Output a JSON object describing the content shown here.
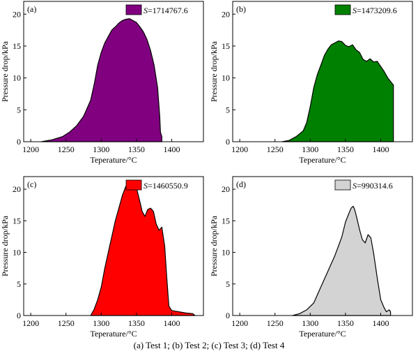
{
  "figure": {
    "caption": "(a) Test 1; (b) Test 2; (c) Test 3; (d) Test 4"
  },
  "chart_data": [
    {
      "type": "area",
      "panel_label": "(a)",
      "xlabel": "Teperature/°C",
      "ylabel": "Pressure drop/kPa",
      "xlim": [
        1190,
        1445
      ],
      "ylim": [
        0,
        22
      ],
      "xticks": [
        1200,
        1250,
        1300,
        1350,
        1400
      ],
      "yticks": [
        0,
        5,
        10,
        15,
        20
      ],
      "legend": {
        "position": "top-right",
        "symbol": "S",
        "value": "=1714767.6"
      },
      "color": "#800080",
      "x": [
        1215,
        1230,
        1245,
        1255,
        1265,
        1275,
        1285,
        1290,
        1295,
        1300,
        1305,
        1310,
        1315,
        1320,
        1325,
        1330,
        1335,
        1340,
        1345,
        1350,
        1355,
        1360,
        1365,
        1370,
        1375,
        1380,
        1383,
        1384,
        1386,
        1386
      ],
      "y": [
        0,
        0.3,
        0.8,
        1.5,
        2.5,
        4.0,
        6.5,
        9.0,
        12.0,
        14.0,
        15.5,
        16.5,
        17.5,
        18.0,
        18.6,
        19.0,
        19.2,
        19.3,
        19.0,
        18.7,
        18.0,
        17.2,
        16.0,
        14.3,
        12.0,
        8.5,
        4.0,
        1.5,
        0.8,
        0
      ]
    },
    {
      "type": "area",
      "panel_label": "(b)",
      "xlabel": "Teperature/°C",
      "ylabel": "Pressure drop/kPa",
      "xlim": [
        1190,
        1445
      ],
      "ylim": [
        0,
        22
      ],
      "xticks": [
        1200,
        1250,
        1300,
        1350,
        1400
      ],
      "yticks": [
        0,
        5,
        10,
        15,
        20
      ],
      "legend": {
        "position": "top-right",
        "symbol": "S",
        "value": "=1473209.6"
      },
      "color": "#008000",
      "x": [
        1260,
        1270,
        1280,
        1290,
        1295,
        1300,
        1305,
        1310,
        1315,
        1320,
        1325,
        1330,
        1335,
        1340,
        1345,
        1350,
        1355,
        1360,
        1365,
        1370,
        1375,
        1380,
        1385,
        1390,
        1395,
        1400,
        1405,
        1410,
        1415,
        1418,
        1418
      ],
      "y": [
        0,
        0.2,
        0.8,
        1.7,
        3.0,
        5.5,
        8.5,
        10.5,
        12.0,
        13.5,
        14.5,
        15.2,
        15.5,
        15.8,
        15.7,
        15.1,
        14.9,
        15.2,
        14.4,
        14.0,
        12.9,
        12.6,
        13.0,
        12.5,
        12.6,
        11.8,
        11.0,
        10.0,
        9.3,
        8.9,
        0
      ]
    },
    {
      "type": "area",
      "panel_label": "(c)",
      "xlabel": "Teperature/°C",
      "ylabel": "Pressure drop/kPa",
      "xlim": [
        1190,
        1445
      ],
      "ylim": [
        0,
        22
      ],
      "xticks": [
        1200,
        1250,
        1300,
        1350,
        1400
      ],
      "yticks": [
        0,
        5,
        10,
        15,
        20
      ],
      "legend": {
        "position": "top-right",
        "symbol": "S",
        "value": "=1460550.9"
      },
      "color": "#ff0000",
      "x": [
        1285,
        1290,
        1295,
        1300,
        1305,
        1310,
        1315,
        1320,
        1325,
        1330,
        1335,
        1338,
        1342,
        1346,
        1350,
        1355,
        1358,
        1362,
        1366,
        1370,
        1374,
        1378,
        1382,
        1386,
        1390,
        1393,
        1396,
        1400,
        1410,
        1420,
        1430,
        1433
      ],
      "y": [
        0,
        1.0,
        2.5,
        4.5,
        7.5,
        10.0,
        12.5,
        15.0,
        17.0,
        19.0,
        20.5,
        20.8,
        20.6,
        21.0,
        20.2,
        18.0,
        16.5,
        15.7,
        16.8,
        17.0,
        16.5,
        14.5,
        13.5,
        14.0,
        11.0,
        6.0,
        1.5,
        0.8,
        0.6,
        0.4,
        0.3,
        0
      ]
    },
    {
      "type": "area",
      "panel_label": "(d)",
      "xlabel": "Teperature/°C",
      "ylabel": "Pressure drop/kPa",
      "xlim": [
        1190,
        1445
      ],
      "ylim": [
        0,
        22
      ],
      "xticks": [
        1200,
        1250,
        1300,
        1350,
        1400
      ],
      "yticks": [
        0,
        5,
        10,
        15,
        20
      ],
      "legend": {
        "position": "top-right",
        "symbol": "S",
        "value": "=990314.6"
      },
      "color": "#d3d3d3",
      "x": [
        1275,
        1285,
        1295,
        1305,
        1315,
        1325,
        1335,
        1340,
        1345,
        1350,
        1355,
        1358,
        1361,
        1363,
        1366,
        1370,
        1374,
        1378,
        1382,
        1386,
        1390,
        1395,
        1400,
        1405,
        1408,
        1412,
        1414,
        1414
      ],
      "y": [
        0,
        0.3,
        0.9,
        2.0,
        4.5,
        7.0,
        9.5,
        11.0,
        12.5,
        14.8,
        16.2,
        17.0,
        17.3,
        16.8,
        15.5,
        13.6,
        12.0,
        11.5,
        12.8,
        12.3,
        9.8,
        6.0,
        2.5,
        1.2,
        0.6,
        0.9,
        0.6,
        0
      ]
    }
  ]
}
